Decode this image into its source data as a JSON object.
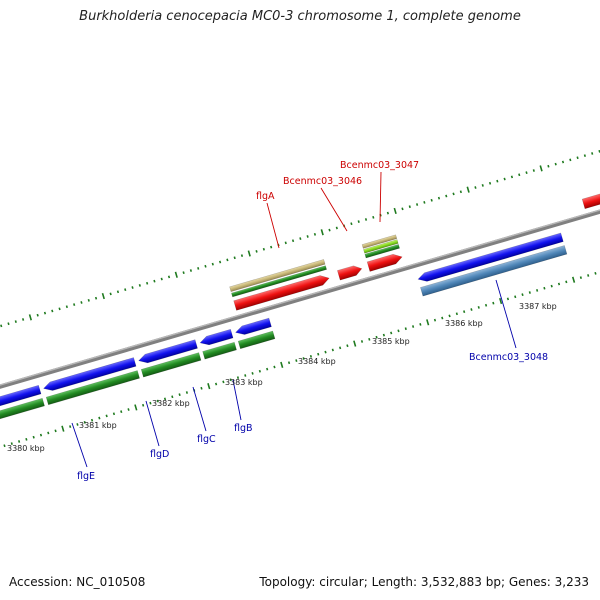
{
  "header": {
    "title": "Burkholderia cenocepacia MC0-3 chromosome 1, complete genome"
  },
  "footer": {
    "accession_label": "Accession:",
    "accession": "NC_010508",
    "topology_label": "Topology:",
    "topology": "circular",
    "length_label": "Length:",
    "length": "3,532,883 bp",
    "genes_label": "Genes:",
    "genes": "3,233"
  },
  "genome_map": {
    "tick_labels": [
      "3380 kbp",
      "3381 kbp",
      "3382 kbp",
      "3383 kbp",
      "3384 kbp",
      "3385 kbp",
      "3386 kbp",
      "3387 kbp"
    ],
    "gene_labels_forward": [
      "flgA",
      "Bcenmc03_3046",
      "Bcenmc03_3047"
    ],
    "gene_labels_reverse": [
      "flgE",
      "flgD",
      "flgC",
      "flgB",
      "Bcenmc03_3048"
    ],
    "colors": {
      "backbone": "#808080",
      "tick": "#1f7a1f",
      "forward_label": "#cc0000",
      "reverse_label": "#0000aa",
      "cds_red": "#ee1111",
      "cds_blue": "#1111ee",
      "cds_steelblue": "#4f86b8",
      "gene_green": "#228b22",
      "gene_khaki": "#c8b878",
      "gene_lime": "#88dd22"
    }
  }
}
